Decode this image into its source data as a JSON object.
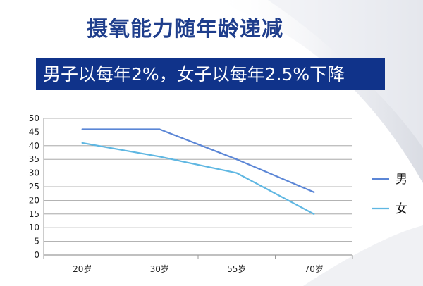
{
  "header": {
    "title": "摄氧能力随年龄递减",
    "banner": "男子以每年2%，女子以每年2.5%下降"
  },
  "colors": {
    "title": "#1f3e8c",
    "banner_bg": "#10338a",
    "series_male": "#5b86d6",
    "series_female": "#5fb7e2",
    "grid": "#9a9a9a"
  },
  "chart_data": {
    "type": "line",
    "categories": [
      "20岁",
      "30岁",
      "55岁",
      "70岁"
    ],
    "series": [
      {
        "name": "男",
        "values": [
          46,
          46,
          35,
          23
        ]
      },
      {
        "name": "女",
        "values": [
          41,
          36,
          30,
          15
        ]
      }
    ],
    "ylim": [
      0,
      50
    ],
    "yticks": [
      0,
      5,
      10,
      15,
      20,
      25,
      30,
      35,
      40,
      45,
      50
    ],
    "grid": true,
    "legend": "right"
  }
}
